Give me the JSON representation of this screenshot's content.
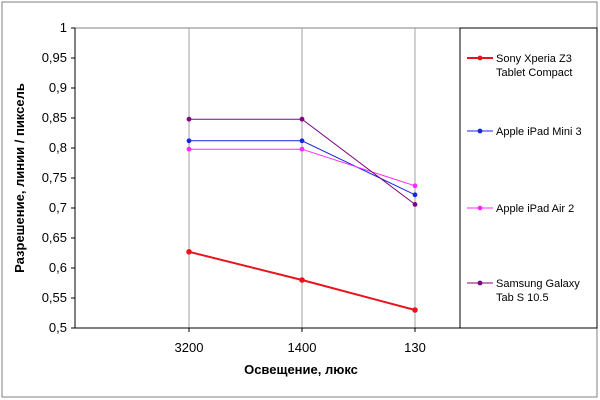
{
  "chart_data": {
    "type": "line",
    "title": "",
    "xlabel": "Освещение, люкс",
    "ylabel": "Разрешение, линии / пиксель",
    "categories": [
      "3200",
      "1400",
      "130"
    ],
    "ylim": [
      0.5,
      1
    ],
    "yticks": [
      "0,5",
      "0,55",
      "0,6",
      "0,65",
      "0,7",
      "0,75",
      "0,8",
      "0,85",
      "0,9",
      "0,95",
      "1"
    ],
    "grid": "vertical",
    "legend_position": "right",
    "series": [
      {
        "name": "Sony Xperia Z3 Tablet Compact",
        "legend_lines": [
          "Sony Xperia Z3",
          "Tablet Compact"
        ],
        "color": "#e8141c",
        "values": [
          0.627,
          0.58,
          0.53
        ]
      },
      {
        "name": "Apple iPad Mini 3",
        "legend_lines": [
          "Apple iPad Mini 3"
        ],
        "color": "#1428e0",
        "values": [
          0.812,
          0.812,
          0.722
        ]
      },
      {
        "name": "Apple iPad Air 2",
        "legend_lines": [
          "Apple iPad Air 2"
        ],
        "color": "#ff28ff",
        "values": [
          0.798,
          0.798,
          0.737
        ]
      },
      {
        "name": "Samsung Galaxy Tab S 10.5",
        "legend_lines": [
          "Samsung Galaxy",
          "Tab S 10.5"
        ],
        "color": "#800080",
        "values": [
          0.848,
          0.848,
          0.706
        ]
      }
    ]
  }
}
